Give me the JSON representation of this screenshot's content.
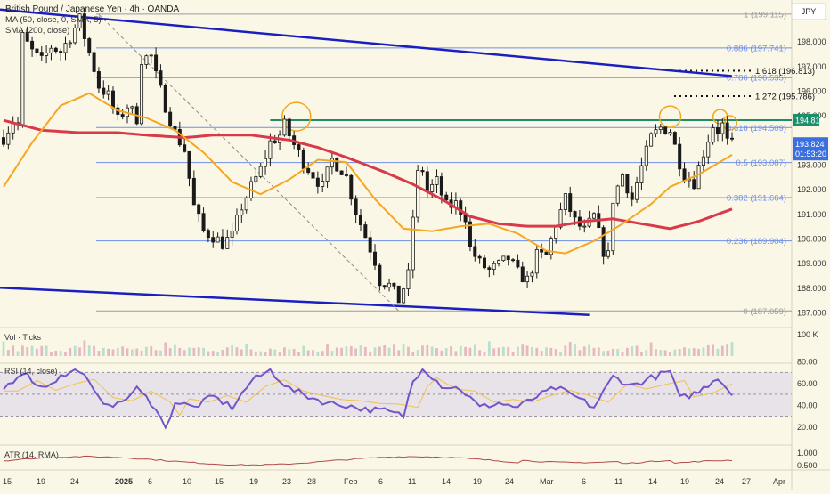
{
  "header": {
    "symbol": "British Pound / Japanese Yen · 4h · OANDA",
    "ma_label": "MA (50, close, 0, SMA, 5)",
    "sma_label": "SMA (200, close)",
    "currency": "JPY"
  },
  "colors": {
    "background": "#fbf7e6",
    "candle": "#1a1a1a",
    "ma50": "#f5a623",
    "sma200": "#d93a4a",
    "fib": "#6f8fe6",
    "channel": "#1a1fc2",
    "resistance": "#1b8f6a",
    "rsi": "#7454c9",
    "atr": "#b24a4a"
  },
  "price_axis": {
    "ticks": [
      "198.000",
      "197.000",
      "196.000",
      "195.000",
      "194.000",
      "193.000",
      "192.000",
      "191.000",
      "190.000",
      "189.000",
      "188.000",
      "187.000"
    ],
    "last_price": "193.824",
    "countdown": "01:53:20",
    "resistance_label": "194.814"
  },
  "fib_levels": [
    {
      "label": "1 (199.115)",
      "price": 199.115
    },
    {
      "label": "0.886 (197.741)",
      "price": 197.741
    },
    {
      "label": "0.786 (196.535)",
      "price": 196.535
    },
    {
      "label": "0.618 (194.509)",
      "price": 194.509
    },
    {
      "label": "0.5 (193.087)",
      "price": 193.087
    },
    {
      "label": "0.382 (191.664)",
      "price": 191.664
    },
    {
      "label": "0.236 (189.904)",
      "price": 189.904
    },
    {
      "label": "0 (187.059)",
      "price": 187.059
    }
  ],
  "extensions": [
    {
      "label": "1.618 (196.813)",
      "price": 196.813
    },
    {
      "label": "1.272 (195.786)",
      "price": 195.786
    }
  ],
  "x_axis": [
    "15",
    "19",
    "24",
    "2025",
    "6",
    "10",
    "15",
    "19",
    "23",
    "28",
    "Feb",
    "6",
    "11",
    "14",
    "19",
    "24",
    "Mar",
    "6",
    "11",
    "14",
    "19",
    "24",
    "27",
    "Apr"
  ],
  "volume": {
    "label": "Vol · Ticks",
    "ticks": [
      "100 K"
    ]
  },
  "rsi": {
    "label": "RSI (14, close)",
    "ticks": [
      "80.00",
      "60.00",
      "40.00",
      "20.00"
    ]
  },
  "atr": {
    "label": "ATR (14, RMA)",
    "ticks": [
      "1.000",
      "0.500"
    ]
  },
  "chart_data": {
    "type": "candlestick",
    "title": "British Pound / Japanese Yen · 4h · OANDA",
    "ylim": [
      186.6,
      199.4
    ],
    "price_path": [
      [
        0,
        194.1
      ],
      [
        2,
        194.8
      ],
      [
        3,
        194.6
      ],
      [
        4,
        198.2
      ],
      [
        6,
        197.6
      ],
      [
        8,
        197.2
      ],
      [
        10,
        197.8
      ],
      [
        12,
        197.6
      ],
      [
        14,
        198.2
      ],
      [
        16,
        198.9
      ],
      [
        17,
        198.2
      ],
      [
        19,
        196.9
      ],
      [
        20,
        196.2
      ],
      [
        22,
        195.8
      ],
      [
        24,
        194.8
      ],
      [
        26,
        195.4
      ],
      [
        28,
        194.9
      ],
      [
        29,
        197.3
      ],
      [
        31,
        197.4
      ],
      [
        32,
        196.6
      ],
      [
        34,
        195.4
      ],
      [
        36,
        194.3
      ],
      [
        38,
        193.6
      ],
      [
        40,
        191.3
      ],
      [
        42,
        190.3
      ],
      [
        44,
        190.1
      ],
      [
        46,
        189.8
      ],
      [
        48,
        190.1
      ],
      [
        50,
        191.3
      ],
      [
        52,
        192.1
      ],
      [
        54,
        192.8
      ],
      [
        56,
        193.9
      ],
      [
        58,
        194.2
      ],
      [
        59,
        194.6
      ],
      [
        61,
        193.8
      ],
      [
        63,
        193.1
      ],
      [
        65,
        192.6
      ],
      [
        67,
        192.1
      ],
      [
        69,
        193.2
      ],
      [
        71,
        192.8
      ],
      [
        72,
        192.5
      ],
      [
        74,
        191.1
      ],
      [
        76,
        190.1
      ],
      [
        78,
        189.1
      ],
      [
        79,
        188.3
      ],
      [
        81,
        188.1
      ],
      [
        83,
        187.5
      ],
      [
        85,
        188.5
      ],
      [
        86,
        190.9
      ],
      [
        87,
        192.6
      ],
      [
        88,
        192.8
      ],
      [
        89,
        191.9
      ],
      [
        91,
        192.3
      ],
      [
        93,
        191.3
      ],
      [
        95,
        191.4
      ],
      [
        97,
        190.9
      ],
      [
        98,
        189.6
      ],
      [
        100,
        189.0
      ],
      [
        102,
        188.7
      ],
      [
        104,
        188.9
      ],
      [
        106,
        189.2
      ],
      [
        108,
        188.6
      ],
      [
        110,
        188.3
      ],
      [
        112,
        189.3
      ],
      [
        114,
        189.3
      ],
      [
        116,
        190.6
      ],
      [
        118,
        191.6
      ],
      [
        120,
        190.7
      ],
      [
        122,
        190.3
      ],
      [
        124,
        190.9
      ],
      [
        126,
        189.5
      ],
      [
        127,
        189.3
      ],
      [
        128,
        191.6
      ],
      [
        130,
        192.6
      ],
      [
        132,
        191.6
      ],
      [
        134,
        192.9
      ],
      [
        136,
        194.1
      ],
      [
        138,
        194.5
      ],
      [
        140,
        194.4
      ],
      [
        142,
        193.1
      ],
      [
        143,
        192.6
      ],
      [
        145,
        192.3
      ],
      [
        147,
        193.5
      ],
      [
        149,
        194.6
      ],
      [
        150,
        194.4
      ],
      [
        151,
        194.6
      ],
      [
        152,
        193.9
      ],
      [
        153,
        193.8
      ]
    ],
    "ma50": [
      [
        0,
        192.1
      ],
      [
        6,
        193.9
      ],
      [
        12,
        195.4
      ],
      [
        18,
        195.9
      ],
      [
        24,
        195.2
      ],
      [
        30,
        194.9
      ],
      [
        36,
        194.4
      ],
      [
        42,
        193.5
      ],
      [
        48,
        192.3
      ],
      [
        54,
        191.8
      ],
      [
        60,
        192.4
      ],
      [
        66,
        193.2
      ],
      [
        72,
        193.1
      ],
      [
        78,
        191.6
      ],
      [
        84,
        190.4
      ],
      [
        90,
        190.3
      ],
      [
        96,
        190.5
      ],
      [
        102,
        190.6
      ],
      [
        108,
        190.2
      ],
      [
        114,
        189.5
      ],
      [
        118,
        189.4
      ],
      [
        124,
        189.9
      ],
      [
        130,
        190.6
      ],
      [
        136,
        191.4
      ],
      [
        140,
        192.1
      ],
      [
        146,
        192.6
      ],
      [
        153,
        193.4
      ]
    ],
    "sma200": [
      [
        0,
        194.8
      ],
      [
        8,
        194.4
      ],
      [
        16,
        194.3
      ],
      [
        24,
        194.3
      ],
      [
        30,
        194.2
      ],
      [
        38,
        194.1
      ],
      [
        44,
        194.2
      ],
      [
        52,
        194.2
      ],
      [
        60,
        194.0
      ],
      [
        66,
        193.7
      ],
      [
        72,
        193.3
      ],
      [
        80,
        192.7
      ],
      [
        86,
        192.2
      ],
      [
        92,
        191.6
      ],
      [
        98,
        190.9
      ],
      [
        104,
        190.6
      ],
      [
        110,
        190.5
      ],
      [
        116,
        190.5
      ],
      [
        122,
        190.7
      ],
      [
        128,
        190.8
      ],
      [
        134,
        190.6
      ],
      [
        140,
        190.4
      ],
      [
        146,
        190.7
      ],
      [
        153,
        191.2
      ]
    ],
    "channel_upper": [
      [
        0,
        199.3
      ],
      [
        153,
        196.6
      ]
    ],
    "channel_lower": [
      [
        0,
        188.0
      ],
      [
        123,
        186.9
      ]
    ],
    "rsi_path": [
      [
        0,
        55
      ],
      [
        4,
        71
      ],
      [
        8,
        56
      ],
      [
        12,
        66
      ],
      [
        16,
        73
      ],
      [
        20,
        45
      ],
      [
        24,
        40
      ],
      [
        28,
        55
      ],
      [
        32,
        38
      ],
      [
        34,
        18
      ],
      [
        36,
        43
      ],
      [
        40,
        38
      ],
      [
        44,
        48
      ],
      [
        48,
        38
      ],
      [
        52,
        62
      ],
      [
        56,
        72
      ],
      [
        60,
        55
      ],
      [
        64,
        48
      ],
      [
        68,
        42
      ],
      [
        72,
        40
      ],
      [
        76,
        36
      ],
      [
        80,
        35
      ],
      [
        84,
        30
      ],
      [
        86,
        62
      ],
      [
        88,
        75
      ],
      [
        92,
        58
      ],
      [
        96,
        55
      ],
      [
        100,
        38
      ],
      [
        104,
        42
      ],
      [
        108,
        38
      ],
      [
        112,
        48
      ],
      [
        116,
        56
      ],
      [
        120,
        48
      ],
      [
        124,
        38
      ],
      [
        128,
        66
      ],
      [
        132,
        58
      ],
      [
        136,
        65
      ],
      [
        140,
        71
      ],
      [
        142,
        46
      ],
      [
        146,
        52
      ],
      [
        150,
        66
      ],
      [
        153,
        50
      ]
    ]
  }
}
